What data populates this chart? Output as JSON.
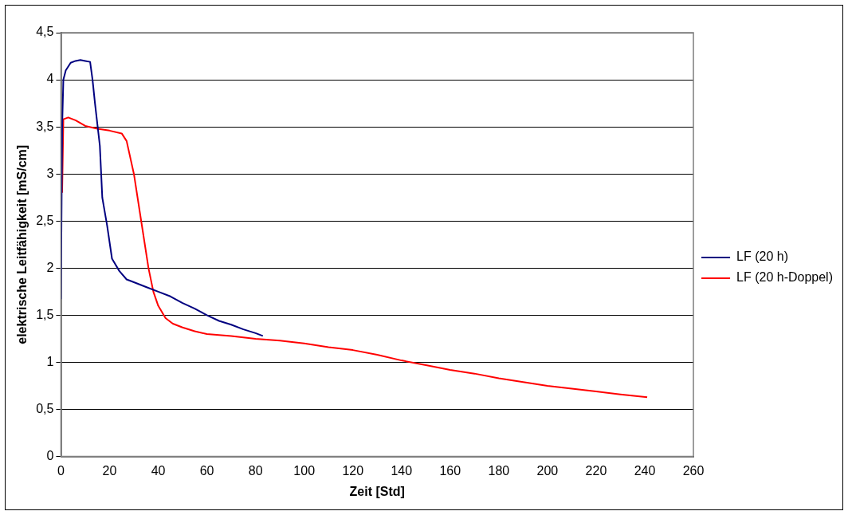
{
  "chart_data": {
    "type": "line",
    "xlabel": "Zeit [Std]",
    "ylabel": "elektrische Leitfähigkeit [mS/cm]",
    "xlim": [
      0,
      260
    ],
    "xticks": [
      0,
      20,
      40,
      60,
      80,
      100,
      120,
      140,
      160,
      180,
      200,
      220,
      240,
      260
    ],
    "ylim": [
      0,
      4.5
    ],
    "yticks": [
      0,
      {
        "value": 0.5,
        "label": "0,5"
      },
      1,
      {
        "value": 1.5,
        "label": "1,5"
      },
      2,
      {
        "value": 2.5,
        "label": "2,5"
      },
      3,
      {
        "value": 3.5,
        "label": "3,5"
      },
      4,
      {
        "value": 4.5,
        "label": "4,5"
      }
    ],
    "grid": "y",
    "legend": "right",
    "marker": "none",
    "line_style": "solid",
    "series": [
      {
        "name": "LF (20 h)",
        "color": "#000080",
        "x": [
          0,
          0.5,
          1,
          2,
          4,
          6,
          8,
          10,
          12,
          13,
          14,
          16,
          17,
          19,
          21,
          24,
          27,
          30,
          35,
          40,
          45,
          50,
          55,
          60,
          65,
          70,
          75,
          80,
          83
        ],
        "values": [
          1.67,
          3.5,
          4.0,
          4.1,
          4.18,
          4.2,
          4.21,
          4.2,
          4.19,
          4.0,
          3.75,
          3.3,
          2.75,
          2.45,
          2.1,
          1.97,
          1.88,
          1.85,
          1.8,
          1.75,
          1.7,
          1.63,
          1.57,
          1.5,
          1.44,
          1.4,
          1.35,
          1.31,
          1.28
        ]
      },
      {
        "name": "LF (20 h-Doppel)",
        "color": "#ff0000",
        "x": [
          0.5,
          1,
          3,
          6,
          10,
          15,
          20,
          25,
          27,
          30,
          33,
          36,
          38,
          40,
          43,
          46,
          50,
          55,
          60,
          70,
          80,
          90,
          100,
          110,
          120,
          130,
          140,
          150,
          160,
          170,
          180,
          190,
          200,
          210,
          220,
          230,
          241
        ],
        "values": [
          2.8,
          3.58,
          3.6,
          3.57,
          3.51,
          3.48,
          3.46,
          3.43,
          3.35,
          3.0,
          2.5,
          2.0,
          1.75,
          1.6,
          1.47,
          1.41,
          1.37,
          1.33,
          1.3,
          1.28,
          1.25,
          1.23,
          1.2,
          1.16,
          1.13,
          1.08,
          1.02,
          0.97,
          0.92,
          0.88,
          0.83,
          0.79,
          0.75,
          0.72,
          0.69,
          0.66,
          0.63
        ]
      }
    ]
  }
}
